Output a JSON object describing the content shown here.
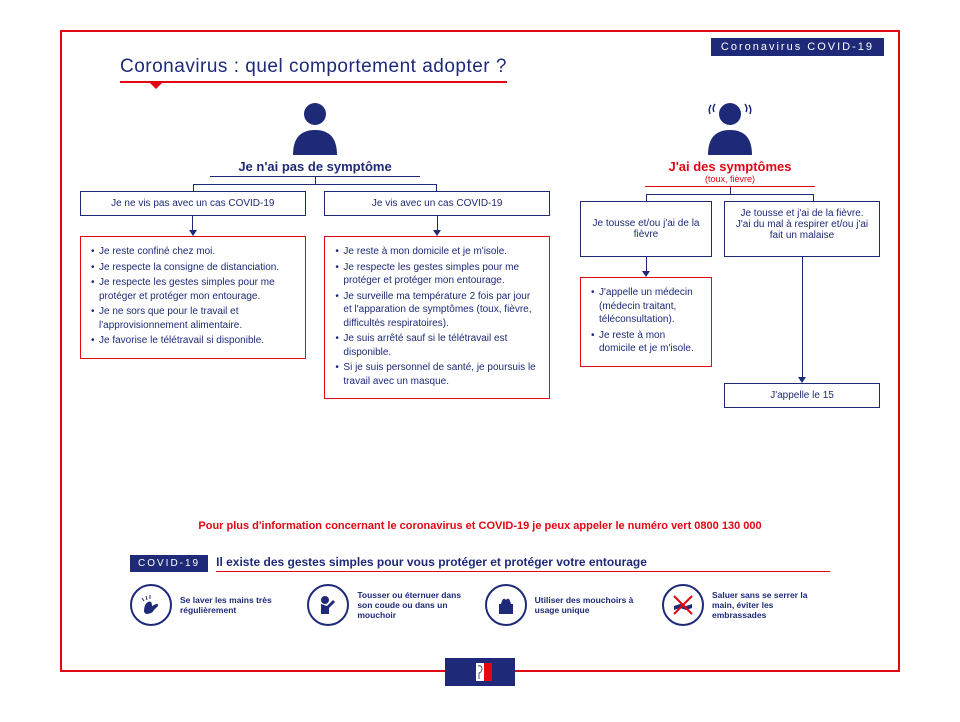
{
  "badge_top": "Coronavirus COVID-19",
  "title": "Coronavirus : quel comportement adopter ?",
  "colors": {
    "navy": "#1e2a78",
    "red": "#e30613",
    "white": "#ffffff"
  },
  "left": {
    "heading": "Je n'ai pas de symptôme",
    "branch_a": {
      "label": "Je ne vis pas avec un cas COVID-19",
      "bullets": [
        "Je reste confiné chez moi.",
        "Je respecte la consigne de distanciation.",
        "Je respecte les gestes simples pour me protéger et protéger mon entourage.",
        "Je ne sors que pour le travail et l'approvisionnement alimentaire.",
        "Je favorise le télétravail si disponible."
      ]
    },
    "branch_b": {
      "label": "Je vis avec un cas COVID-19",
      "bullets": [
        "Je reste à mon domicile et je m'isole.",
        "Je respecte les gestes simples pour me protéger et protéger mon entourage.",
        "Je surveille ma température 2 fois par jour et l'apparation de symptômes (toux, fièvre, difficultés respiratoires).",
        "Je suis arrêté sauf si le télétravail est disponible.",
        "Si je suis personnel de santé, je poursuis le travail avec un masque."
      ]
    }
  },
  "right": {
    "heading": "J'ai des symptômes",
    "sub": "(toux, fièvre)",
    "branch_a": {
      "label": "Je tousse et/ou j'ai de la fièvre",
      "bullets": [
        "J'appelle un médecin (médecin traitant, téléconsultation).",
        "Je reste à mon domicile et je m'isole."
      ]
    },
    "branch_b": {
      "label": "Je tousse et j'ai de la fièvre. J'ai du mal à respirer et/ou j'ai fait un malaise",
      "result": "J'appelle le 15"
    }
  },
  "info_line": "Pour plus d'information concernant le coronavirus et COVID-19 je peux appeler le numéro vert 0800 130 000",
  "gestures": {
    "tag": "COVID-19",
    "title": "Il existe des gestes simples pour vous protéger et protéger votre entourage",
    "items": [
      {
        "text": "Se laver les mains très régulièrement",
        "icon": "wash-hands"
      },
      {
        "text": "Tousser ou éternuer dans son coude ou dans un mouchoir",
        "icon": "cough-elbow"
      },
      {
        "text": "Utiliser des mouchoirs à usage unique",
        "icon": "tissue"
      },
      {
        "text": "Saluer sans se serrer la main, éviter les embrassades",
        "icon": "no-handshake"
      }
    ]
  }
}
